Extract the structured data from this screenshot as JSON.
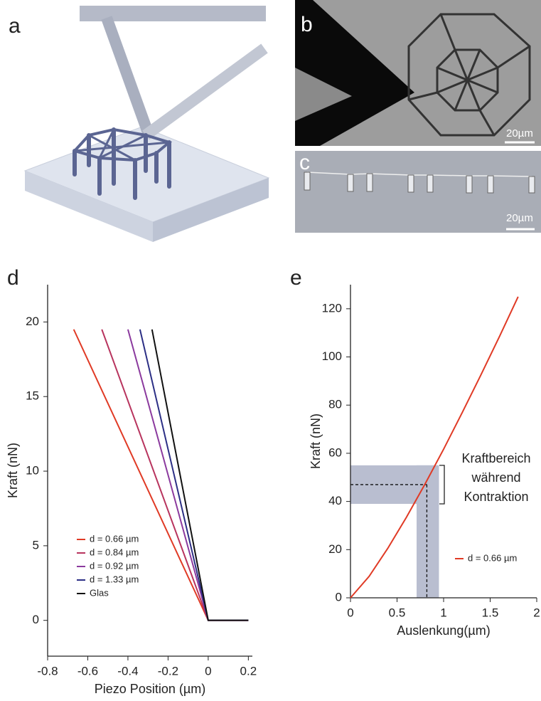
{
  "panel_labels": [
    "a",
    "b",
    "c",
    "d",
    "e"
  ],
  "scale_bars": [
    "20µm",
    "20µm"
  ],
  "chart_data": [
    {
      "type": "line",
      "x_label": "Piezo Position (µm)",
      "y_label": "Kraft (nN)",
      "xlim": [
        -0.8,
        0.22
      ],
      "ylim": [
        -2.4,
        22.5
      ],
      "xticks": [
        -0.8,
        -0.6,
        -0.4,
        -0.2,
        0,
        0.2
      ],
      "yticks": [
        0,
        5,
        10,
        15,
        20
      ],
      "legend": "lower left",
      "series": [
        {
          "name": "d =  0.66 µm",
          "color": "#e03a25",
          "x": [
            -0.67,
            0,
            0.2
          ],
          "values": [
            19.5,
            0,
            0
          ]
        },
        {
          "name": "d =  0.84 µm",
          "color": "#b8345e",
          "x": [
            -0.53,
            0,
            0.2
          ],
          "values": [
            19.5,
            0,
            0
          ]
        },
        {
          "name": "d =  0.92 µm",
          "color": "#8b3a9e",
          "x": [
            -0.4,
            0,
            0.2
          ],
          "values": [
            19.5,
            0,
            0
          ]
        },
        {
          "name": "d =  1.33 µm",
          "color": "#2c2f85",
          "x": [
            -0.34,
            0,
            0.2
          ],
          "values": [
            19.5,
            0,
            0
          ]
        },
        {
          "name": "Glas",
          "color": "#111111",
          "x": [
            -0.28,
            0,
            0.2
          ],
          "values": [
            19.5,
            0,
            0
          ]
        }
      ]
    },
    {
      "type": "line",
      "x_label": "Auslenkung(µm)",
      "y_label": "Kraft (nN)",
      "xlim": [
        0,
        2
      ],
      "ylim": [
        0,
        130
      ],
      "xticks": [
        0,
        0.5,
        1,
        1.5,
        2
      ],
      "yticks": [
        0,
        20,
        40,
        60,
        80,
        100,
        120
      ],
      "legend": "right",
      "series": [
        {
          "name": "d =  0.66 µm",
          "color": "#e03a25",
          "x": [
            0,
            0.2,
            0.4,
            0.6,
            0.8,
            1.0,
            1.2,
            1.4,
            1.6,
            1.8
          ],
          "values": [
            0,
            8.9,
            20.5,
            33.4,
            47.2,
            61.7,
            76.9,
            92.5,
            108.5,
            125
          ]
        }
      ],
      "highlight": {
        "y_range": [
          39,
          55
        ],
        "x_range": [
          0.71,
          0.95
        ],
        "marker": {
          "x": 0.82,
          "y": 47
        },
        "color": "#b9bed0"
      },
      "annotation": [
        "Kraftbereich",
        "während",
        "Kontraktion"
      ]
    }
  ]
}
